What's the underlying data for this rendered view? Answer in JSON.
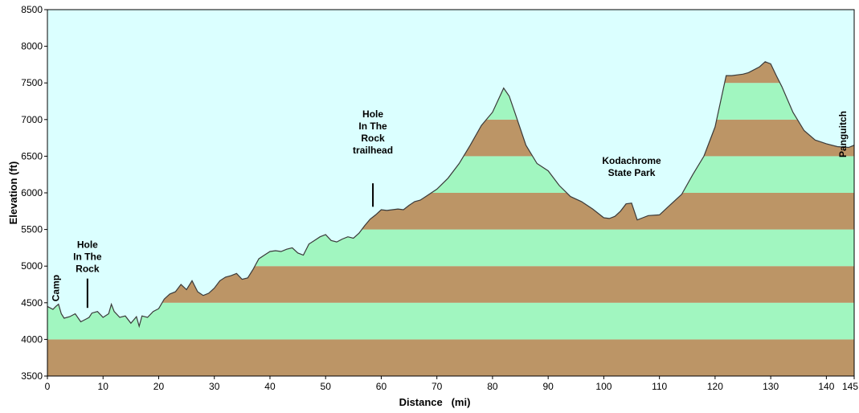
{
  "chart_data": {
    "type": "area",
    "xlabel": "Distance   (mi)",
    "ylabel": "Elevation (ft)",
    "xlim": [
      0,
      145
    ],
    "ylim": [
      3500,
      8500
    ],
    "x_ticks": [
      0,
      10,
      20,
      30,
      40,
      50,
      60,
      70,
      80,
      90,
      100,
      110,
      120,
      130,
      140,
      145
    ],
    "y_ticks": [
      3500,
      4000,
      4500,
      5000,
      5500,
      6000,
      6500,
      7000,
      7500,
      8000,
      8500
    ],
    "band_colors": {
      "brown": "#bc9566",
      "green": "#a1f6c0"
    },
    "background_color": "#dbffff",
    "profile": {
      "x": [
        0,
        1,
        1.5,
        2,
        2.5,
        3,
        4,
        5,
        6,
        7,
        7.5,
        8,
        9,
        10,
        11,
        11.5,
        12,
        13,
        14,
        15,
        16,
        16.5,
        17,
        18,
        19,
        20,
        21,
        22,
        23,
        24,
        25,
        26,
        27,
        28,
        29,
        30,
        31,
        32,
        33,
        34,
        35,
        36,
        37,
        38,
        39,
        40,
        41,
        42,
        43,
        44,
        45,
        46,
        47,
        48,
        49,
        50,
        51,
        52,
        53,
        54,
        55,
        56,
        57,
        58,
        59,
        60,
        61,
        62,
        63,
        64,
        65,
        66,
        67,
        68,
        70,
        72,
        74,
        76,
        78,
        80,
        82,
        83,
        84,
        86,
        88,
        90,
        92,
        94,
        96,
        98,
        100,
        101,
        102,
        103,
        104,
        105,
        106,
        107,
        108,
        110,
        112,
        114,
        116,
        118,
        120,
        121,
        122,
        123,
        124,
        125,
        126,
        128,
        129,
        130,
        131,
        132,
        134,
        136,
        138,
        140,
        142,
        144,
        145
      ],
      "y": [
        4450,
        4410,
        4450,
        4480,
        4350,
        4290,
        4310,
        4350,
        4240,
        4280,
        4300,
        4360,
        4380,
        4300,
        4350,
        4480,
        4380,
        4300,
        4320,
        4220,
        4310,
        4180,
        4320,
        4300,
        4380,
        4420,
        4550,
        4620,
        4650,
        4750,
        4680,
        4800,
        4650,
        4600,
        4630,
        4700,
        4800,
        4850,
        4870,
        4900,
        4820,
        4840,
        4960,
        5100,
        5150,
        5200,
        5210,
        5200,
        5230,
        5250,
        5180,
        5150,
        5300,
        5350,
        5400,
        5430,
        5350,
        5330,
        5370,
        5400,
        5380,
        5450,
        5550,
        5640,
        5700,
        5770,
        5760,
        5770,
        5780,
        5770,
        5830,
        5880,
        5900,
        5950,
        6050,
        6200,
        6400,
        6650,
        6920,
        7100,
        7430,
        7320,
        7100,
        6650,
        6400,
        6300,
        6100,
        5950,
        5880,
        5780,
        5660,
        5650,
        5680,
        5750,
        5850,
        5860,
        5630,
        5660,
        5690,
        5700,
        5840,
        5980,
        6250,
        6500,
        6900,
        7250,
        7600,
        7600,
        7610,
        7620,
        7640,
        7720,
        7790,
        7760,
        7600,
        7450,
        7100,
        6850,
        6720,
        6670,
        6630,
        6620,
        6650
      ]
    },
    "annotations": [
      {
        "text_lines": [
          "Camp"
        ],
        "x": 1.5,
        "label_elev": 4700,
        "rotated": true,
        "marker": false
      },
      {
        "text_lines": [
          "Hole",
          "In The",
          "Rock"
        ],
        "x": 7.2,
        "label_elev": 4920,
        "rotated": false,
        "marker": true,
        "marker_from": 4830,
        "marker_to": 4430
      },
      {
        "text_lines": [
          "Hole",
          "In The",
          "Rock",
          "trailhead"
        ],
        "x": 58.5,
        "label_elev": 6540,
        "rotated": false,
        "marker": true,
        "marker_from": 6130,
        "marker_to": 5810
      },
      {
        "text_lines": [
          "Kodachrome",
          "State Park"
        ],
        "x": 105,
        "label_elev": 6230,
        "rotated": false,
        "marker": false
      },
      {
        "text_lines": [
          "Panguitch"
        ],
        "x": 143,
        "label_elev": 6800,
        "rotated": true,
        "marker": false
      }
    ]
  }
}
